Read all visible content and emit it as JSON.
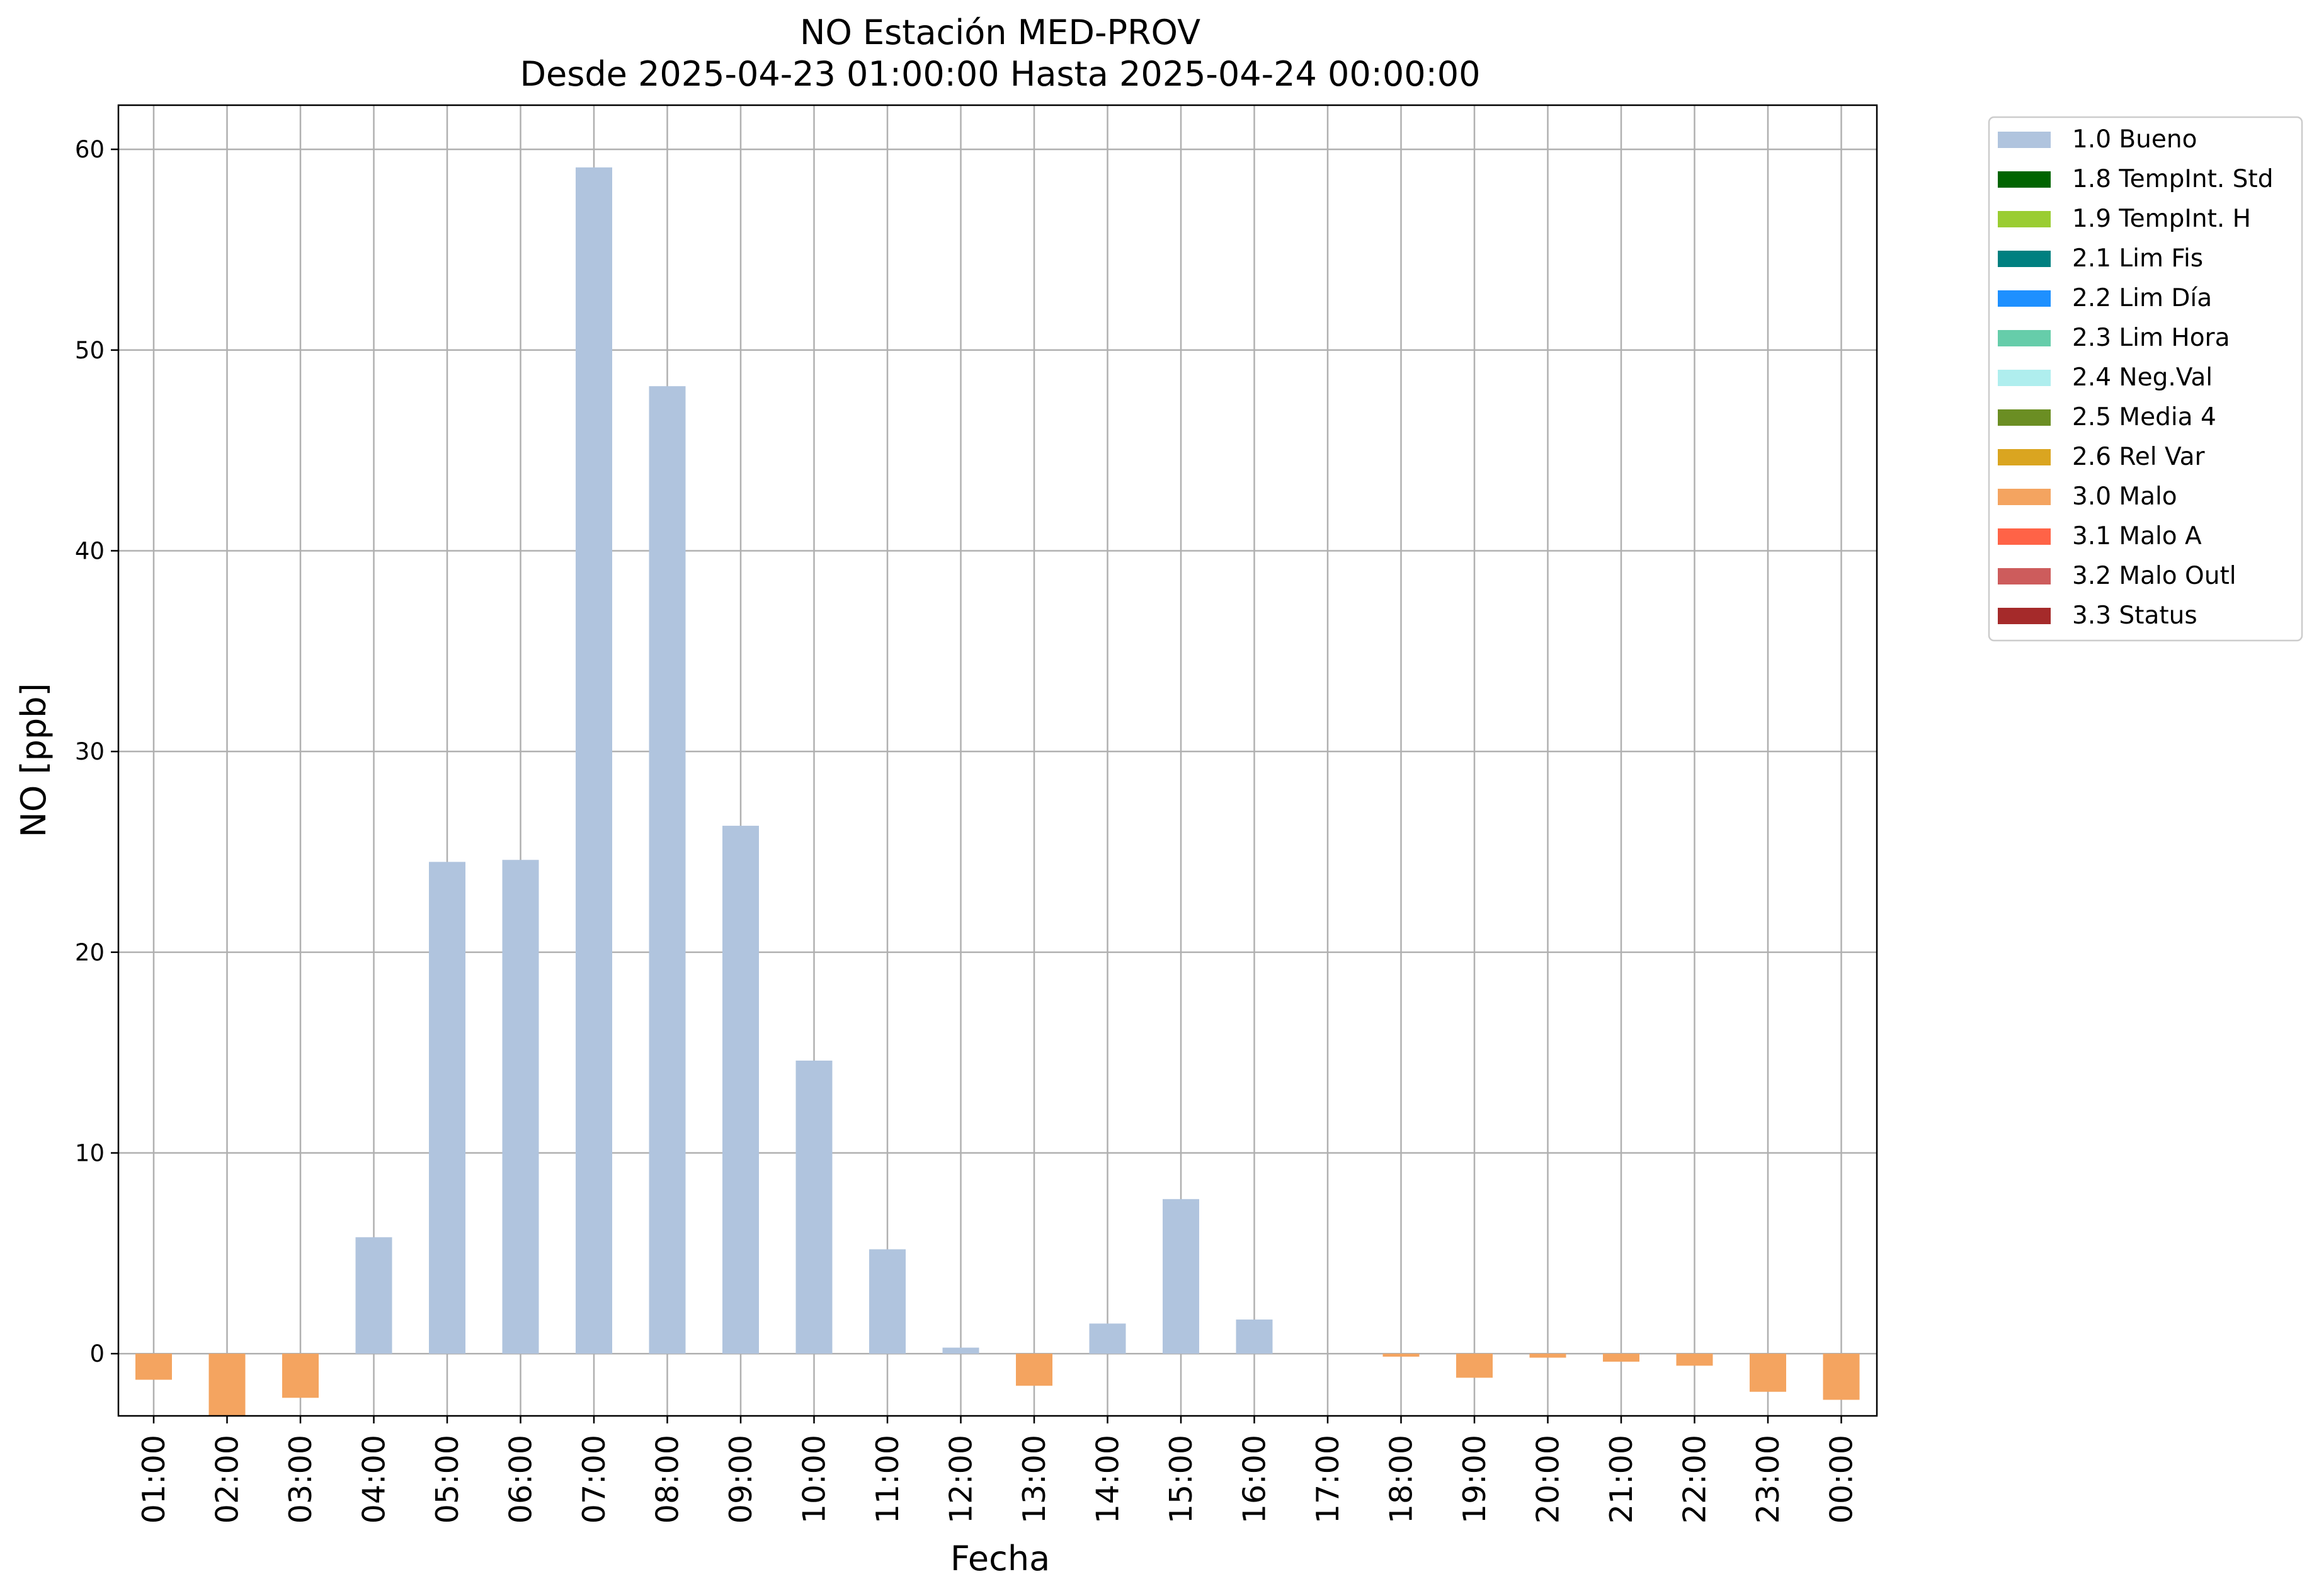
{
  "chart_data": {
    "type": "bar",
    "title": "NO Estación MED-PROV",
    "subtitle": "Desde 2025-04-23 01:00:00 Hasta 2025-04-24 00:00:00",
    "xlabel": "Fecha",
    "ylabel": "NO [ppb]",
    "ylim": [
      -3.1,
      62.2
    ],
    "yticks": [
      0,
      10,
      20,
      30,
      40,
      50,
      60
    ],
    "grid": true,
    "legend_position": "outside-right",
    "categories": [
      "01:00",
      "02:00",
      "03:00",
      "04:00",
      "05:00",
      "06:00",
      "07:00",
      "08:00",
      "09:00",
      "10:00",
      "11:00",
      "12:00",
      "13:00",
      "14:00",
      "15:00",
      "16:00",
      "17:00",
      "18:00",
      "19:00",
      "20:00",
      "21:00",
      "22:00",
      "23:00",
      "00:00"
    ],
    "values": [
      -1.3,
      -3.1,
      -2.2,
      5.8,
      24.5,
      24.6,
      59.1,
      48.2,
      26.3,
      14.6,
      5.2,
      0.3,
      -1.6,
      1.5,
      7.7,
      1.7,
      0.0,
      -0.15,
      -1.2,
      -0.2,
      -0.4,
      -0.6,
      -1.9,
      -2.3
    ],
    "flags": [
      "3.0 Malo",
      "3.0 Malo",
      "3.0 Malo",
      "1.0 Bueno",
      "1.0 Bueno",
      "1.0 Bueno",
      "1.0 Bueno",
      "1.0 Bueno",
      "1.0 Bueno",
      "1.0 Bueno",
      "1.0 Bueno",
      "1.0 Bueno",
      "3.0 Malo",
      "1.0 Bueno",
      "1.0 Bueno",
      "1.0 Bueno",
      "1.0 Bueno",
      "3.0 Malo",
      "3.0 Malo",
      "3.0 Malo",
      "3.0 Malo",
      "3.0 Malo",
      "3.0 Malo",
      "3.0 Malo"
    ],
    "legend": [
      {
        "label": "1.0 Bueno",
        "color": "#b0c4de"
      },
      {
        "label": "1.8 TempInt. Std",
        "color": "#006400"
      },
      {
        "label": "1.9 TempInt. H",
        "color": "#9acd32"
      },
      {
        "label": "2.1 Lim Fis",
        "color": "#008080"
      },
      {
        "label": "2.2 Lim Día",
        "color": "#1e90ff"
      },
      {
        "label": "2.3 Lim Hora",
        "color": "#66cdaa"
      },
      {
        "label": "2.4 Neg.Val",
        "color": "#afeeee"
      },
      {
        "label": "2.5 Media 4",
        "color": "#6b8e23"
      },
      {
        "label": "2.6 Rel Var",
        "color": "#daa520"
      },
      {
        "label": "3.0 Malo",
        "color": "#f4a460"
      },
      {
        "label": "3.1 Malo A",
        "color": "#ff6347"
      },
      {
        "label": "3.2 Malo Outl",
        "color": "#cd5c5c"
      },
      {
        "label": "3.3 Status",
        "color": "#a52a2a"
      }
    ]
  }
}
